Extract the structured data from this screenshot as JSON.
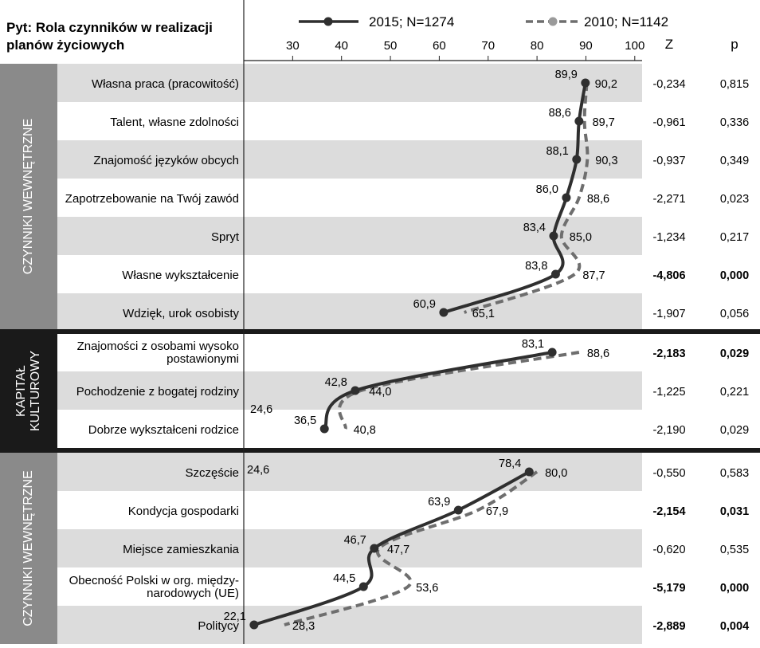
{
  "header": {
    "title_line1": "Pyt: Rola czynników w realizacji",
    "title_line2": "planów życiowych",
    "z_header": "Z",
    "p_header": "p"
  },
  "legend": [
    {
      "label": "2015; N=1274",
      "style": "solid",
      "color": "#2f2f2f"
    },
    {
      "label": "2010; N=1142",
      "style": "dashed",
      "color": "#6e6e6e"
    }
  ],
  "sections": [
    {
      "label": "CZYNNIKI WEWNĘTRZNE",
      "color": "#8a8a8a"
    },
    {
      "label": "KAPITAŁ KULTUROWY",
      "color": "#1a1a1a"
    },
    {
      "label": "CZYNNIKI WEWNĘTRZNE",
      "color": "#8a8a8a"
    }
  ],
  "rows": [
    {
      "label": "Własna praca (pracowitość)",
      "v2015": "89,9",
      "v2010": "90,2",
      "z": "-0,234",
      "p": "0,815",
      "bold": false
    },
    {
      "label": "Talent, własne zdolności",
      "v2015": "88,6",
      "v2010": "89,7",
      "z": "-0,961",
      "p": "0,336",
      "bold": false
    },
    {
      "label": "Znajomość języków obcych",
      "v2015": "88,1",
      "v2010": "90,3",
      "z": "-0,937",
      "p": "0,349",
      "bold": false
    },
    {
      "label": "Zapotrzebowanie na Twój zawód",
      "v2015": "86,0",
      "v2010": "88,6",
      "z": "-2,271",
      "p": "0,023",
      "bold": false
    },
    {
      "label": "Spryt",
      "v2015": "83,4",
      "v2010": "85,0",
      "z": "-1,234",
      "p": "0,217",
      "bold": false
    },
    {
      "label": "Własne wykształcenie",
      "v2015": "83,8",
      "v2010": "87,7",
      "z": "-4,806",
      "p": "0,000",
      "bold": true
    },
    {
      "label": "Wdzięk, urok osobisty",
      "v2015": "60,9",
      "v2010": "65,1",
      "z": "-1,907",
      "p": "0,056",
      "bold": false
    },
    {
      "label": "Znajomości z osobami wysoko postawionymi",
      "v2015": "83,1",
      "v2010": "88,6",
      "z": "-2,183",
      "p": "0,029",
      "bold": true
    },
    {
      "label": "Pochodzenie z bogatej rodziny",
      "v2015": "42,8",
      "v2010": "44,0",
      "z": "-1,225",
      "p": "0,221",
      "bold": false
    },
    {
      "label": "Dobrze wykształceni rodzice",
      "v2015": "36,5",
      "v2010": "40,8",
      "z": "-2,190",
      "p": "0,029",
      "bold": false
    },
    {
      "label": "Szczęście",
      "v2015": "78,4",
      "v2010": "80,0",
      "z": "-0,550",
      "p": "0,583",
      "bold": false
    },
    {
      "label": "Kondycja gospodarki",
      "v2015": "63,9",
      "v2010": "67,9",
      "z": "-2,154",
      "p": "0,031",
      "bold": true
    },
    {
      "label": "Miejsce zamieszkania",
      "v2015": "46,7",
      "v2010": "47,7",
      "z": "-0,620",
      "p": "0,535",
      "bold": false
    },
    {
      "label": "Obecność Polski w org. między-narodowych (UE)",
      "v2015": "44,5",
      "v2010": "53,6",
      "z": "-5,179",
      "p": "0,000",
      "bold": true
    },
    {
      "label": "Politycy",
      "v2015": "22,1",
      "v2010": "28,3",
      "z": "-2,889",
      "p": "0,004",
      "bold": true
    }
  ],
  "extra_labels": [
    "24,6",
    "24,6"
  ],
  "chart_data": {
    "type": "line",
    "orientation": "horizontal",
    "title": "Pyt: Rola czynników w realizacji planów życiowych",
    "xlim": [
      20,
      100
    ],
    "xticks": [
      30,
      40,
      50,
      60,
      70,
      80,
      90,
      100
    ],
    "categories": [
      "Własna praca (pracowitość)",
      "Talent, własne zdolności",
      "Znajomość języków obcych",
      "Zapotrzebowanie na Twój zawód",
      "Spryt",
      "Własne wykształcenie",
      "Wdzięk, urok osobisty",
      "Znajomości z osobami wysoko postawionymi",
      "Pochodzenie z bogatej rodziny",
      "Dobrze wykształceni rodzice",
      "Szczęście",
      "Kondycja gospodarki",
      "Miejsce zamieszkania",
      "Obecność Polski w org. międzynarodowych (UE)",
      "Politycy"
    ],
    "series": [
      {
        "name": "2015; N=1274",
        "values": [
          89.9,
          88.6,
          88.1,
          86.0,
          83.4,
          83.8,
          60.9,
          83.1,
          42.8,
          36.5,
          78.4,
          63.9,
          46.7,
          44.5,
          22.1
        ]
      },
      {
        "name": "2010; N=1142",
        "values": [
          90.2,
          89.7,
          90.3,
          88.6,
          85.0,
          87.7,
          65.1,
          88.6,
          44.0,
          40.8,
          80.0,
          67.9,
          47.7,
          53.6,
          28.3
        ]
      }
    ]
  }
}
